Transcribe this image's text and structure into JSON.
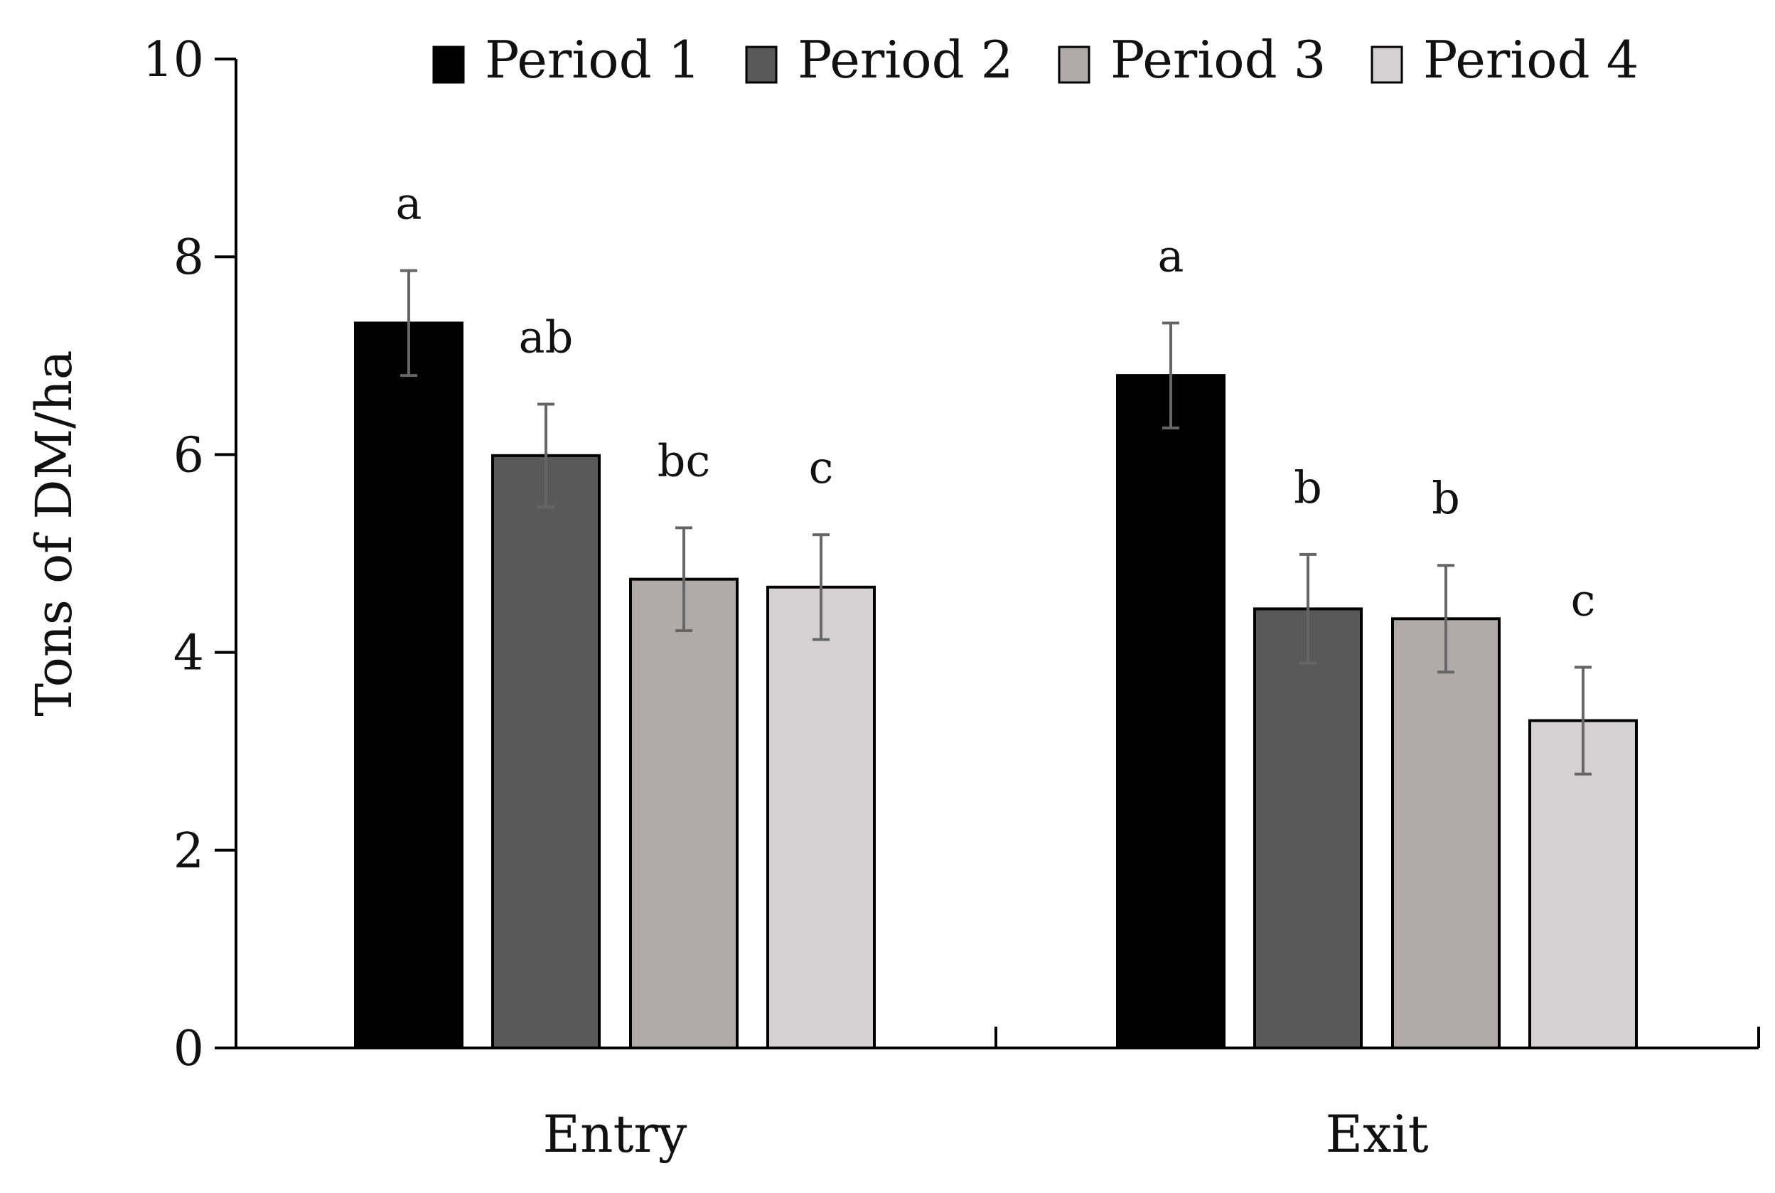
{
  "chart_data": {
    "type": "bar",
    "title": "",
    "xlabel": "",
    "ylabel": "Tons of DM/ha",
    "ylim": [
      0,
      10
    ],
    "yticks": [
      0,
      2,
      4,
      6,
      8,
      10
    ],
    "categories": [
      "Entry",
      "Exit"
    ],
    "legend_position": "top",
    "series": [
      {
        "name": "Period 1",
        "color": "#000000",
        "values": [
          7.33,
          6.8
        ],
        "errors": [
          0.53,
          0.53
        ],
        "letters": [
          "a",
          "a"
        ]
      },
      {
        "name": "Period 2",
        "color": "#595959",
        "values": [
          5.99,
          4.44
        ],
        "errors": [
          0.52,
          0.55
        ],
        "letters": [
          "ab",
          "b"
        ]
      },
      {
        "name": "Period 3",
        "color": "#b0aba8",
        "values": [
          4.74,
          4.34
        ],
        "errors": [
          0.52,
          0.54
        ],
        "letters": [
          "bc",
          "b"
        ]
      },
      {
        "name": "Period 4",
        "color": "#d4d1d2",
        "values": [
          4.66,
          3.31
        ],
        "errors": [
          0.53,
          0.54
        ],
        "letters": [
          "c",
          "c"
        ]
      }
    ]
  }
}
